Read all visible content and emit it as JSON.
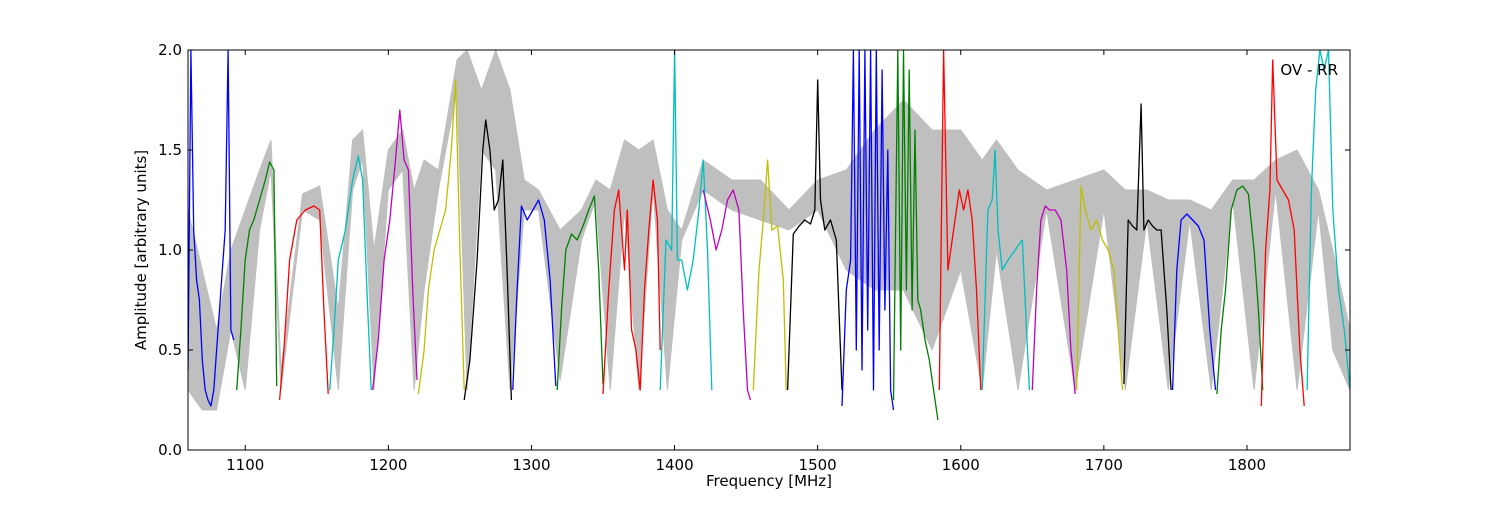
{
  "chart_data": {
    "type": "line",
    "title": "",
    "annotation": "OV - RR",
    "xlabel": "Frequency [MHz]",
    "ylabel": "Amplitude [arbitrary units]",
    "xlim": [
      1060,
      1872
    ],
    "ylim": [
      0.0,
      2.0
    ],
    "xticks": [
      1100,
      1200,
      1300,
      1400,
      1500,
      1600,
      1700,
      1800
    ],
    "xtick_labels": [
      "1100",
      "1200",
      "1300",
      "1400",
      "1500",
      "1600",
      "1700",
      "1800"
    ],
    "yticks": [
      0.0,
      0.5,
      1.0,
      1.5,
      2.0
    ],
    "ytick_labels": [
      "0.0",
      "0.5",
      "1.0",
      "1.5",
      "2.0"
    ],
    "grid": false,
    "background_envelope": {
      "color": "#bfbfbf",
      "x": [
        1060,
        1070,
        1080,
        1090,
        1100,
        1110,
        1118,
        1125,
        1140,
        1152,
        1165,
        1175,
        1182,
        1190,
        1200,
        1210,
        1218,
        1225,
        1235,
        1248,
        1255,
        1265,
        1275,
        1285,
        1295,
        1305,
        1320,
        1335,
        1345,
        1355,
        1365,
        1375,
        1385,
        1395,
        1405,
        1420,
        1440,
        1460,
        1480,
        1500,
        1520,
        1540,
        1560,
        1580,
        1600,
        1615,
        1625,
        1640,
        1660,
        1680,
        1700,
        1715,
        1730,
        1745,
        1760,
        1775,
        1790,
        1805,
        1820,
        1835,
        1850,
        1860,
        1872
      ],
      "upper": [
        1.2,
        0.9,
        0.6,
        1.0,
        1.2,
        1.4,
        1.55,
        0.4,
        1.28,
        1.32,
        0.7,
        1.55,
        1.6,
        1.0,
        1.5,
        1.6,
        1.3,
        1.45,
        1.4,
        1.95,
        2.0,
        1.8,
        2.0,
        1.8,
        1.35,
        1.3,
        1.1,
        1.2,
        1.35,
        1.3,
        1.55,
        1.5,
        1.55,
        1.2,
        1.1,
        1.45,
        1.35,
        1.35,
        1.2,
        1.35,
        1.4,
        1.6,
        1.75,
        1.6,
        1.6,
        1.45,
        1.55,
        1.4,
        1.3,
        1.35,
        1.4,
        1.3,
        1.3,
        1.25,
        1.25,
        1.2,
        1.35,
        1.35,
        1.45,
        1.5,
        1.3,
        1.0,
        0.6
      ],
      "lower": [
        0.3,
        0.2,
        0.2,
        0.6,
        0.3,
        1.1,
        1.4,
        0.3,
        1.2,
        1.15,
        0.3,
        1.3,
        1.45,
        0.3,
        1.3,
        1.4,
        0.3,
        0.8,
        1.3,
        1.8,
        0.3,
        1.5,
        1.4,
        0.3,
        1.2,
        1.2,
        0.35,
        1.05,
        1.25,
        0.3,
        1.2,
        0.3,
        1.3,
        0.3,
        1.05,
        1.3,
        1.2,
        1.15,
        1.1,
        1.2,
        0.9,
        0.8,
        0.8,
        0.5,
        0.9,
        0.3,
        1.0,
        0.3,
        1.2,
        0.3,
        1.2,
        0.3,
        1.15,
        0.3,
        1.15,
        0.3,
        1.25,
        0.3,
        1.3,
        0.3,
        1.2,
        0.5,
        0.3
      ]
    },
    "series": [
      {
        "color": "#0000ff",
        "x": [
          1060,
          1062,
          1064,
          1066,
          1068,
          1070,
          1072,
          1074,
          1076,
          1078,
          1080,
          1082,
          1084,
          1086,
          1088,
          1090,
          1092
        ],
        "y": [
          0.4,
          2.0,
          1.1,
          0.85,
          0.75,
          0.45,
          0.3,
          0.25,
          0.22,
          0.3,
          0.5,
          0.7,
          0.9,
          1.1,
          2.0,
          0.6,
          0.55
        ]
      },
      {
        "color": "#008000",
        "x": [
          1094,
          1097,
          1100,
          1103,
          1106,
          1110,
          1114,
          1117,
          1120,
          1122
        ],
        "y": [
          0.3,
          0.6,
          0.95,
          1.1,
          1.15,
          1.25,
          1.35,
          1.44,
          1.4,
          0.32
        ]
      },
      {
        "color": "#ff0000",
        "x": [
          1124,
          1127,
          1131,
          1136,
          1142,
          1148,
          1152,
          1155,
          1158
        ],
        "y": [
          0.25,
          0.5,
          0.95,
          1.15,
          1.2,
          1.22,
          1.2,
          0.7,
          0.28
        ]
      },
      {
        "color": "#00bfbf",
        "x": [
          1159,
          1162,
          1165,
          1170,
          1175,
          1179,
          1182,
          1185,
          1188
        ],
        "y": [
          0.3,
          0.6,
          0.95,
          1.1,
          1.35,
          1.47,
          1.35,
          0.8,
          0.3
        ]
      },
      {
        "color": "#bf00bf",
        "x": [
          1189,
          1193,
          1197,
          1201,
          1205,
          1208,
          1211,
          1214,
          1217,
          1220
        ],
        "y": [
          0.3,
          0.55,
          0.95,
          1.15,
          1.45,
          1.7,
          1.45,
          1.4,
          0.8,
          0.35
        ]
      },
      {
        "color": "#bfbf00",
        "x": [
          1221,
          1225,
          1228,
          1232,
          1236,
          1240,
          1244,
          1247,
          1250,
          1253
        ],
        "y": [
          0.28,
          0.5,
          0.8,
          1.0,
          1.1,
          1.2,
          1.5,
          1.85,
          1.0,
          0.3
        ]
      },
      {
        "color": "#000000",
        "x": [
          1253,
          1257,
          1262,
          1266,
          1268,
          1271,
          1274,
          1277,
          1280,
          1283,
          1286
        ],
        "y": [
          0.25,
          0.45,
          0.95,
          1.5,
          1.65,
          1.5,
          1.2,
          1.25,
          1.45,
          0.9,
          0.25
        ]
      },
      {
        "color": "#0000ff",
        "x": [
          1287,
          1290,
          1293,
          1297,
          1301,
          1305,
          1309,
          1313,
          1317
        ],
        "y": [
          0.3,
          0.8,
          1.22,
          1.15,
          1.2,
          1.25,
          1.15,
          0.85,
          0.32
        ]
      },
      {
        "color": "#008000",
        "x": [
          1318,
          1321,
          1324,
          1328,
          1332,
          1336,
          1340,
          1344,
          1347,
          1350
        ],
        "y": [
          0.3,
          0.7,
          1.0,
          1.08,
          1.05,
          1.12,
          1.2,
          1.27,
          0.9,
          0.33
        ]
      },
      {
        "color": "#ff0000",
        "x": [
          1350,
          1354,
          1358,
          1361,
          1363,
          1365,
          1367,
          1370,
          1373,
          1376,
          1379,
          1382,
          1385,
          1388,
          1390
        ],
        "y": [
          0.28,
          0.8,
          1.2,
          1.3,
          1.1,
          0.9,
          1.2,
          0.6,
          0.5,
          0.3,
          0.8,
          1.1,
          1.35,
          1.15,
          0.5
        ]
      },
      {
        "color": "#00bfbf",
        "x": [
          1390,
          1394,
          1398,
          1400,
          1402,
          1405,
          1409,
          1413,
          1417,
          1420,
          1423,
          1426
        ],
        "y": [
          0.3,
          1.05,
          1.0,
          2.0,
          0.95,
          0.95,
          0.8,
          0.95,
          1.2,
          1.45,
          1.0,
          0.3
        ]
      },
      {
        "color": "#bf00bf",
        "x": [
          1420,
          1425,
          1429,
          1433,
          1437,
          1441,
          1445,
          1448,
          1451,
          1453
        ],
        "y": [
          1.3,
          1.15,
          1.0,
          1.1,
          1.25,
          1.3,
          1.2,
          0.7,
          0.3,
          0.25
        ]
      },
      {
        "color": "#bfbf00",
        "x": [
          1455,
          1459,
          1462,
          1465,
          1468,
          1472,
          1476,
          1478
        ],
        "y": [
          0.3,
          0.9,
          1.15,
          1.45,
          1.1,
          1.12,
          0.85,
          0.3
        ]
      },
      {
        "color": "#000000",
        "x": [
          1479,
          1483,
          1487,
          1491,
          1495,
          1498,
          1500,
          1502,
          1505,
          1509,
          1513,
          1517
        ],
        "y": [
          0.3,
          1.08,
          1.12,
          1.15,
          1.13,
          1.2,
          1.85,
          1.25,
          1.1,
          1.15,
          1.05,
          0.3
        ]
      },
      {
        "color": "#0000ff",
        "x": [
          1517,
          1520,
          1523,
          1525,
          1527,
          1529,
          1531,
          1533,
          1535,
          1537,
          1539,
          1541,
          1543,
          1545,
          1547,
          1549,
          1551,
          1553
        ],
        "y": [
          0.22,
          0.8,
          0.95,
          2.0,
          0.5,
          2.0,
          0.4,
          2.0,
          0.6,
          2.0,
          0.3,
          2.0,
          0.5,
          1.9,
          0.7,
          1.5,
          0.3,
          0.2
        ]
      },
      {
        "color": "#008000",
        "x": [
          1553,
          1556,
          1558,
          1560,
          1562,
          1564,
          1566,
          1568,
          1570,
          1572,
          1575,
          1578,
          1581,
          1584
        ],
        "y": [
          0.25,
          2.0,
          0.5,
          2.0,
          0.8,
          1.9,
          0.7,
          1.6,
          0.75,
          0.7,
          0.55,
          0.45,
          0.3,
          0.15
        ]
      },
      {
        "color": "#ff0000",
        "x": [
          1585,
          1588,
          1591,
          1595,
          1599,
          1602,
          1605,
          1608,
          1611,
          1614
        ],
        "y": [
          0.3,
          2.0,
          0.9,
          1.1,
          1.3,
          1.2,
          1.3,
          1.15,
          0.8,
          0.3
        ]
      },
      {
        "color": "#00bfbf",
        "x": [
          1615,
          1619,
          1622,
          1624,
          1626,
          1629,
          1633,
          1638,
          1643,
          1648
        ],
        "y": [
          0.3,
          1.2,
          1.25,
          1.5,
          1.1,
          0.9,
          0.95,
          1.0,
          1.05,
          0.3
        ]
      },
      {
        "color": "#bf00bf",
        "x": [
          1650,
          1653,
          1656,
          1659,
          1662,
          1666,
          1670,
          1674,
          1677,
          1680
        ],
        "y": [
          0.3,
          0.8,
          1.15,
          1.22,
          1.2,
          1.2,
          1.15,
          0.9,
          0.5,
          0.28
        ]
      },
      {
        "color": "#bfbf00",
        "x": [
          1681,
          1684,
          1687,
          1691,
          1695,
          1699,
          1703,
          1707,
          1710,
          1713
        ],
        "y": [
          0.3,
          1.32,
          1.2,
          1.1,
          1.15,
          1.05,
          1.0,
          0.9,
          0.6,
          0.3
        ]
      },
      {
        "color": "#000000",
        "x": [
          1714,
          1717,
          1720,
          1723,
          1726,
          1728,
          1731,
          1734,
          1737,
          1740,
          1744,
          1747
        ],
        "y": [
          0.33,
          1.15,
          1.12,
          1.1,
          1.73,
          1.1,
          1.15,
          1.12,
          1.1,
          1.1,
          0.7,
          0.3
        ]
      },
      {
        "color": "#0000ff",
        "x": [
          1748,
          1751,
          1754,
          1758,
          1762,
          1766,
          1770,
          1774,
          1778
        ],
        "y": [
          0.3,
          0.9,
          1.15,
          1.18,
          1.15,
          1.12,
          1.05,
          0.6,
          0.3
        ]
      },
      {
        "color": "#008000",
        "x": [
          1779,
          1782,
          1785,
          1789,
          1793,
          1797,
          1801,
          1805,
          1808,
          1811
        ],
        "y": [
          0.28,
          0.6,
          0.8,
          1.2,
          1.3,
          1.32,
          1.28,
          1.0,
          0.7,
          0.3
        ]
      },
      {
        "color": "#ff0000",
        "x": [
          1810,
          1813,
          1816,
          1818,
          1821,
          1825,
          1829,
          1833,
          1837,
          1840
        ],
        "y": [
          0.22,
          1.0,
          1.3,
          1.95,
          1.35,
          1.3,
          1.25,
          1.1,
          0.5,
          0.22
        ]
      },
      {
        "color": "#00bfbf",
        "x": [
          1842,
          1845,
          1848,
          1851,
          1854,
          1857,
          1860,
          1864,
          1868,
          1872
        ],
        "y": [
          0.3,
          1.3,
          1.8,
          2.0,
          1.9,
          2.0,
          1.2,
          0.8,
          0.6,
          0.3
        ]
      }
    ]
  }
}
